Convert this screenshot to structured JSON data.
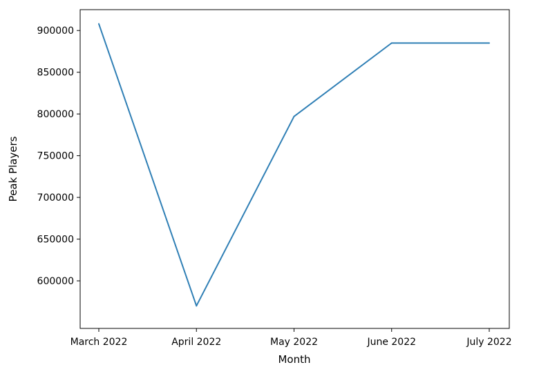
{
  "chart_data": {
    "type": "line",
    "categories": [
      "March 2022",
      "April 2022",
      "May 2022",
      "June 2022",
      "July 2022"
    ],
    "series": [
      {
        "values": [
          908000,
          570000,
          797000,
          885000,
          885000
        ],
        "color": "#2f7fb5"
      }
    ],
    "title": "",
    "xlabel": "Month",
    "ylabel": "Peak Players",
    "ylim": [
      543000,
      925000
    ],
    "yticks": [
      600000,
      650000,
      700000,
      750000,
      800000,
      850000,
      900000
    ],
    "ytick_labels": [
      "600000",
      "650000",
      "700000",
      "750000",
      "800000",
      "850000",
      "900000"
    ],
    "grid": false,
    "legend": "none"
  }
}
